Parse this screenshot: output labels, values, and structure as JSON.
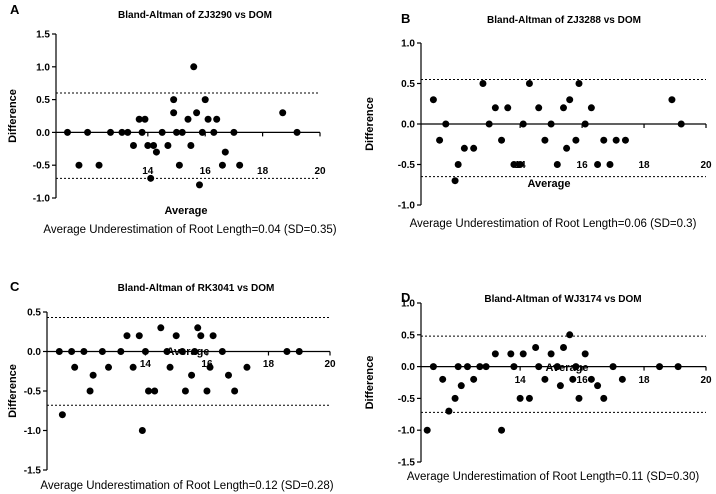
{
  "chart_data": [
    {
      "type": "scatter",
      "panel": "A",
      "title": "Bland-Altman of ZJ3290 vs DOM",
      "xlabel": "Average",
      "ylabel": "Difference",
      "caption": "Average Underestimation of Root Length=0.04 (SD=0.35)",
      "xticks": [
        14,
        16,
        18,
        20
      ],
      "yticks": [
        -1.0,
        -0.5,
        0.0,
        0.5,
        1.0,
        1.5
      ],
      "ytick_labels": [
        "-1.0",
        "-0.5",
        "0.0",
        "0.5",
        "1.0",
        "1.5"
      ],
      "xlim": [
        10.8,
        20
      ],
      "ylim": [
        -1.0,
        1.5
      ],
      "upper_limit": 0.6,
      "lower_limit": -0.7,
      "x": [
        11.2,
        11.6,
        11.9,
        12.3,
        12.7,
        13.1,
        13.3,
        13.5,
        13.7,
        13.8,
        13.9,
        14.0,
        14.1,
        14.2,
        14.3,
        14.5,
        14.7,
        14.9,
        14.9,
        15.0,
        15.1,
        15.2,
        15.4,
        15.5,
        15.6,
        15.7,
        15.8,
        15.9,
        16.0,
        16.1,
        16.3,
        16.4,
        16.6,
        16.7,
        17.0,
        17.2,
        18.7,
        19.2
      ],
      "y": [
        0.0,
        -0.5,
        0.0,
        -0.5,
        0.0,
        0.0,
        0.0,
        -0.2,
        0.2,
        0.0,
        0.2,
        -0.2,
        -0.7,
        -0.2,
        -0.3,
        0.0,
        -0.2,
        0.5,
        0.3,
        0.0,
        -0.5,
        0.0,
        0.2,
        -0.2,
        1.0,
        0.3,
        -0.8,
        0.0,
        0.5,
        0.2,
        0.0,
        0.2,
        -0.5,
        -0.3,
        0.0,
        -0.5,
        0.3,
        0.0
      ]
    },
    {
      "type": "scatter",
      "panel": "B",
      "title": "Bland-Altman of ZJ3288 vs DOM",
      "xlabel": "Average",
      "ylabel": "Difference",
      "caption": "Average Underestimation of Root Length=0.06 (SD=0.3)",
      "xticks": [
        14,
        16,
        18,
        20
      ],
      "yticks": [
        -1.0,
        -0.5,
        0.0,
        0.5,
        1.0
      ],
      "ytick_labels": [
        "-1.0",
        "-0.5",
        "0.0",
        "0.5",
        "1.0"
      ],
      "xlim": [
        10.8,
        20
      ],
      "ylim": [
        -1.0,
        1.0
      ],
      "upper_limit": 0.55,
      "lower_limit": -0.65,
      "x": [
        11.2,
        11.4,
        11.6,
        11.9,
        12.0,
        12.2,
        12.5,
        12.8,
        13.0,
        13.2,
        13.4,
        13.6,
        13.8,
        14.0,
        14.1,
        14.3,
        14.6,
        14.8,
        15.0,
        15.2,
        15.4,
        15.5,
        15.6,
        15.8,
        15.9,
        16.1,
        16.3,
        16.5,
        16.7,
        16.9,
        17.1,
        17.4,
        18.9,
        19.2
      ],
      "y": [
        0.3,
        -0.2,
        0.0,
        -0.7,
        -0.5,
        -0.3,
        -0.3,
        0.5,
        0.0,
        0.2,
        -0.2,
        0.2,
        -0.5,
        -0.5,
        0.0,
        0.5,
        0.2,
        -0.2,
        0.0,
        -0.5,
        0.2,
        -0.3,
        0.3,
        -0.2,
        0.5,
        0.0,
        0.2,
        -0.5,
        -0.2,
        -0.5,
        -0.2,
        -0.2,
        0.3,
        0.0
      ]
    },
    {
      "type": "scatter",
      "panel": "C",
      "title": "Bland-Altman of RK3041 vs DOM",
      "xlabel": "Average",
      "ylabel": "Difference",
      "caption": "Average Underestimation of Root Length=0.12 (SD=0.28)",
      "xticks": [
        14,
        16,
        18,
        20
      ],
      "yticks": [
        -1.5,
        -1.0,
        -0.5,
        0.0,
        0.5
      ],
      "ytick_labels": [
        "-1.5",
        "-1.0",
        "-0.5",
        "0.0",
        "0.5"
      ],
      "xlim": [
        10.8,
        20
      ],
      "ylim": [
        -1.5,
        0.5
      ],
      "upper_limit": 0.43,
      "lower_limit": -0.68,
      "x": [
        11.2,
        11.3,
        11.6,
        11.7,
        12.0,
        12.2,
        12.3,
        12.6,
        12.8,
        13.2,
        13.4,
        13.6,
        13.8,
        13.9,
        14.0,
        14.1,
        14.3,
        14.5,
        14.7,
        14.8,
        15.0,
        15.2,
        15.3,
        15.5,
        15.6,
        15.7,
        15.8,
        16.0,
        16.1,
        16.2,
        16.5,
        16.7,
        16.9,
        17.3,
        18.6,
        19.0
      ],
      "y": [
        0.0,
        -0.8,
        0.0,
        -0.2,
        0.0,
        -0.5,
        -0.3,
        0.0,
        -0.2,
        0.0,
        0.2,
        -0.2,
        0.2,
        -1.0,
        0.0,
        -0.5,
        -0.5,
        0.3,
        0.0,
        -0.2,
        0.2,
        0.0,
        -0.5,
        -0.3,
        0.0,
        0.3,
        0.2,
        -0.5,
        -0.2,
        0.2,
        0.0,
        -0.3,
        -0.5,
        -0.2,
        0.0,
        0.0
      ]
    },
    {
      "type": "scatter",
      "panel": "D",
      "title": "Bland-Altman of WJ3174 vs DOM",
      "xlabel": "Average",
      "ylabel": "Difference",
      "caption": "Average Underestimation of Root Length=0.11 (SD=0.30)",
      "xticks": [
        14,
        16,
        18,
        20
      ],
      "yticks": [
        -1.5,
        -1.0,
        -0.5,
        0.0,
        0.5,
        1.0
      ],
      "ytick_labels": [
        "-1.5",
        "-1.0",
        "-0.5",
        "0.0",
        "0.5",
        "1.0"
      ],
      "xlim": [
        10.8,
        20
      ],
      "ylim": [
        -1.5,
        1.0
      ],
      "upper_limit": 0.48,
      "lower_limit": -0.72,
      "x": [
        11.0,
        11.2,
        11.5,
        11.7,
        11.9,
        12.0,
        12.1,
        12.3,
        12.5,
        12.7,
        12.9,
        13.2,
        13.4,
        13.7,
        13.8,
        14.0,
        14.1,
        14.3,
        14.5,
        14.6,
        14.8,
        15.0,
        15.2,
        15.3,
        15.4,
        15.6,
        15.7,
        15.8,
        15.9,
        16.1,
        16.3,
        16.5,
        16.7,
        17.0,
        17.3,
        18.5,
        19.1
      ],
      "y": [
        -1.0,
        0.0,
        -0.2,
        -0.7,
        -0.5,
        0.0,
        -0.3,
        0.0,
        -0.2,
        0.0,
        0.0,
        0.2,
        -1.0,
        0.2,
        0.0,
        -0.5,
        0.2,
        -0.5,
        0.3,
        0.0,
        -0.2,
        0.2,
        0.0,
        -0.3,
        0.3,
        0.5,
        -0.2,
        0.0,
        -0.5,
        0.2,
        -0.2,
        -0.3,
        -0.5,
        0.0,
        -0.2,
        0.0,
        0.0
      ]
    }
  ]
}
